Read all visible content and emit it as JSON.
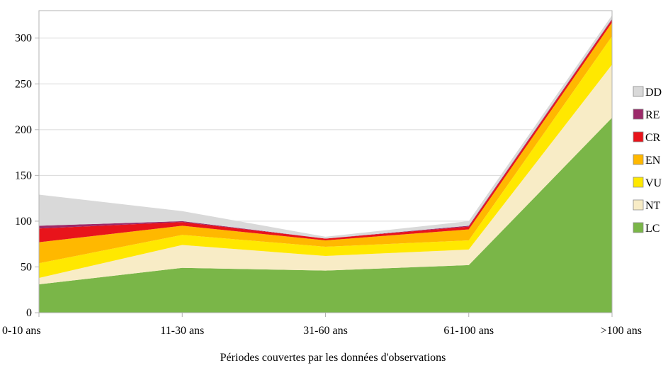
{
  "chart_data": {
    "type": "area",
    "stacked": true,
    "title": "",
    "xlabel": "Périodes couvertes par les données d'observations",
    "ylabel": "",
    "categories": [
      "0-10 ans",
      "11-30 ans",
      "31-60 ans",
      "61-100 ans",
      ">100 ans"
    ],
    "ylim": [
      0,
      330
    ],
    "yticks": [
      0,
      50,
      100,
      150,
      200,
      250,
      300
    ],
    "grid": true,
    "legend_position": "right",
    "series": [
      {
        "name": "LC",
        "color": "#7ab648",
        "values": [
          31,
          49,
          46,
          52,
          213
        ]
      },
      {
        "name": "NT",
        "color": "#f8ecc6",
        "values": [
          7,
          25,
          16,
          17,
          58
        ]
      },
      {
        "name": "VU",
        "color": "#ffe800",
        "values": [
          16,
          11,
          10,
          10,
          31
        ]
      },
      {
        "name": "EN",
        "color": "#ffb800",
        "values": [
          23,
          10,
          7,
          12,
          15
        ]
      },
      {
        "name": "CR",
        "color": "#e8141b",
        "values": [
          15,
          4,
          2,
          3,
          3
        ]
      },
      {
        "name": "RE",
        "color": "#9c2a6a",
        "values": [
          3,
          1,
          0,
          1,
          1
        ]
      },
      {
        "name": "DD",
        "color": "#d9d9d9",
        "values": [
          34,
          11,
          2,
          5,
          4
        ]
      }
    ]
  }
}
